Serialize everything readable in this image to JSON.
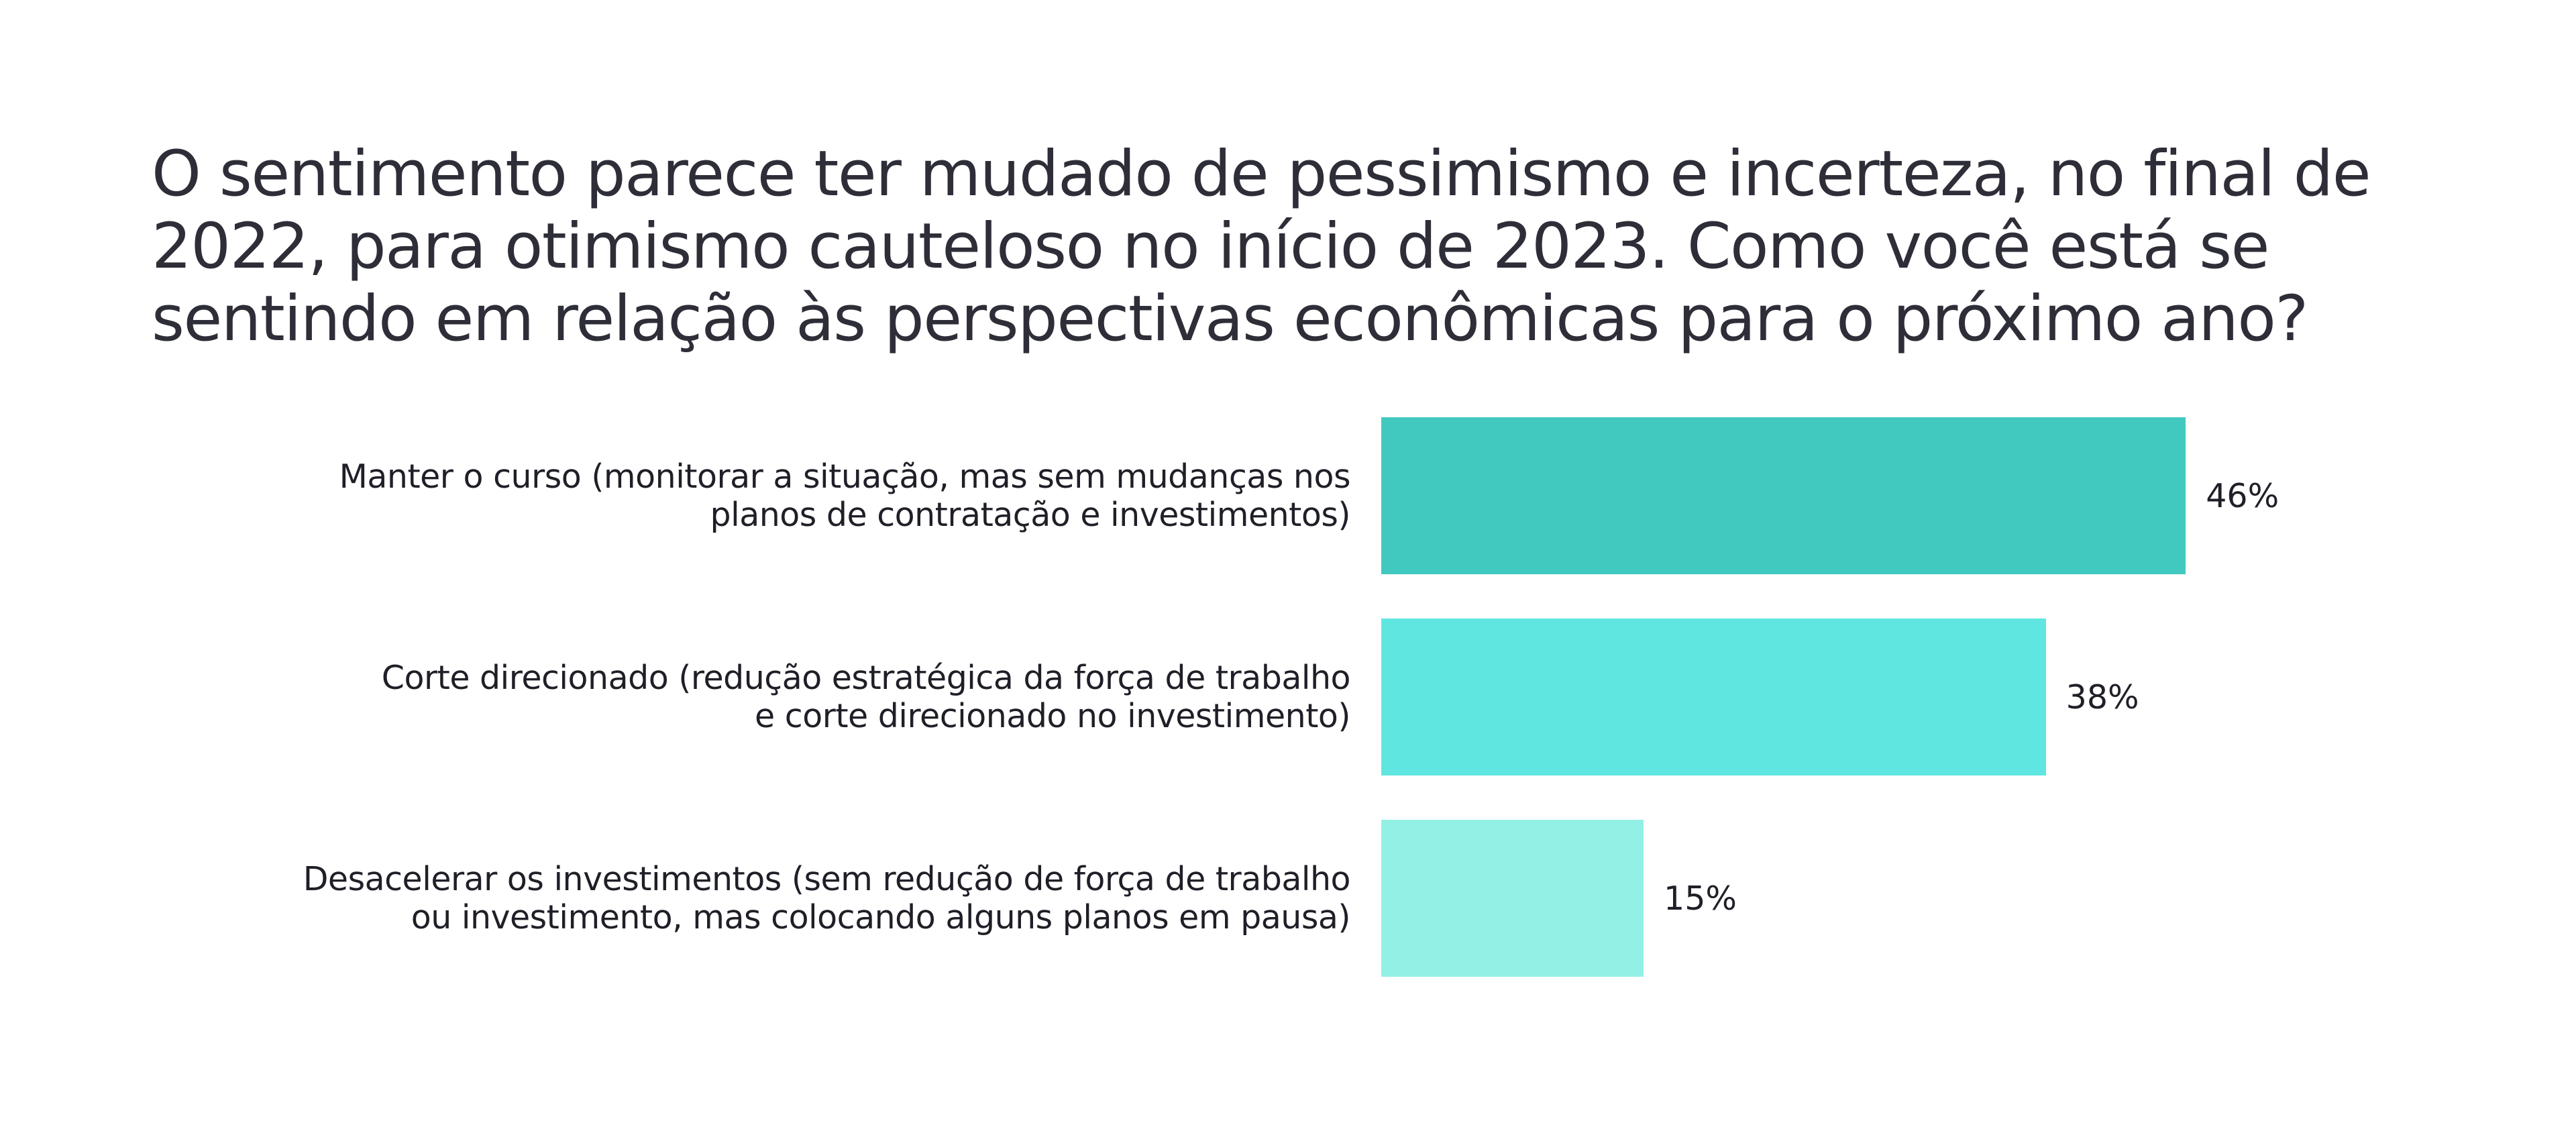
{
  "title": {
    "lines": [
      "O sentimento parece ter mudado de pessimismo e incerteza, no final de",
      "2022, para otimismo cauteloso no início de 2023. Como você está se",
      "sentindo em relação às perspectivas econômicas para o próximo ano?"
    ]
  },
  "colors": {
    "text": "#2e2e38",
    "bar_1": "#42c9bf",
    "bar_2": "#60e6e0",
    "bar_3": "#93f0e5",
    "background": "#ffffff"
  },
  "chart_data": {
    "type": "bar",
    "orientation": "horizontal",
    "title": "O sentimento parece ter mudado de pessimismo e incerteza, no final de 2022, para otimismo cauteloso no início de 2023. Como você está se sentindo em relação às perspectivas econômicas para o próximo ano?",
    "categories": [
      "Manter o curso (monitorar a situação, mas sem mudanças nos planos de contratação e investimentos)",
      "Corte direcionado (redução estratégica da força de trabalho e corte direcionado no investimento)",
      "Desacelerar os investimentos (sem redução de força de trabalho ou investimento, mas colocando alguns planos em pausa)"
    ],
    "values": [
      46,
      38,
      15
    ],
    "value_labels": [
      "46%",
      "38%",
      "15%"
    ],
    "unit": "%",
    "xlabel": "",
    "ylabel": "",
    "grid": false,
    "legend": null,
    "bar_colors": [
      "#42c9bf",
      "#60e6e0",
      "#93f0e5"
    ]
  },
  "rows": [
    {
      "label_lines": [
        "Manter o curso (monitorar a situação, mas sem mudanças nos",
        "planos de contratação e investimentos)"
      ],
      "value_label": "46%"
    },
    {
      "label_lines": [
        "Corte direcionado (redução estratégica da força de trabalho",
        "e corte direcionado no investimento)"
      ],
      "value_label": "38%"
    },
    {
      "label_lines": [
        "Desacelerar os investimentos (sem redução de força de trabalho",
        "ou investimento, mas colocando alguns planos em pausa)"
      ],
      "value_label": "15%"
    }
  ]
}
